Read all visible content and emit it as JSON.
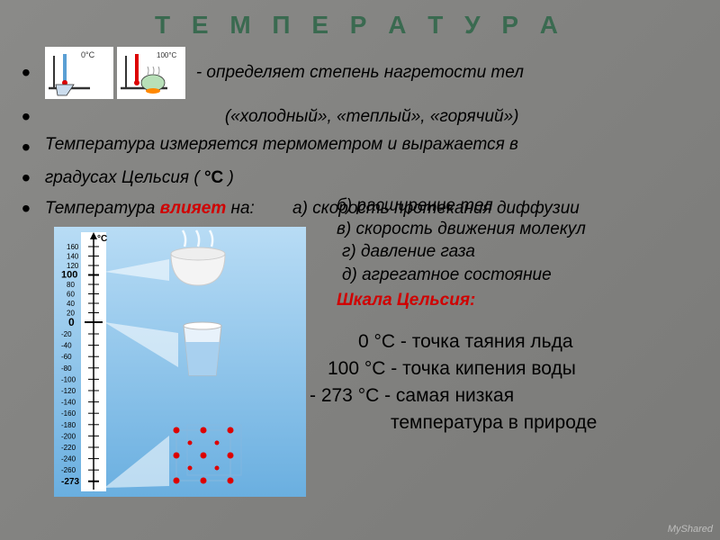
{
  "title": "Т Е М П Е Р А Т У Р А",
  "title_color": "#3a6a50",
  "thermo_labels": {
    "left": "0°C",
    "right": "100°C"
  },
  "line1": "- определяет степень нагретости тел",
  "line2": "(«холодный», «теплый», «горячий»)",
  "line3a": "Температура измеряется термометром и выражается в",
  "line3b": "градусах Цельсия ( ",
  "line3b_unit": "°C",
  "line3b_end": " )",
  "influence_prefix": "Температура",
  "influence_red": "влияет",
  "influence_suffix": "на:",
  "effects": {
    "a": "а) скорость протекания диффузии",
    "b": "б) расширение тел",
    "c": "в) скорость движения молекул",
    "d": "г) давление газа",
    "e": "д) агрегатное состояние"
  },
  "celsius_heading": "Шкала Цельсия:",
  "celsius_heading_color": "#d00000",
  "points": {
    "p0": {
      "val": "0 °C",
      "desc": "- точка таяния льда"
    },
    "p100": {
      "val": "100 °C",
      "desc": "-  точка кипения воды"
    },
    "p273": {
      "val": "- 273 °C",
      "desc": "-  самая низкая"
    },
    "p273b": "температура в природе"
  },
  "scale": {
    "bg_top": "#9ecaf0",
    "bg_bottom": "#5a9fd4",
    "ticks_pos": [
      "160",
      "140",
      "120",
      "100",
      "80",
      "60",
      "40",
      "20"
    ],
    "zero": "0",
    "ticks_neg": [
      "-20",
      "-40",
      "-60",
      "-80",
      "-100",
      "-120",
      "-140",
      "-160",
      "-180",
      "-200",
      "-220",
      "-240",
      "-260",
      "-273"
    ]
  },
  "watermark": "MyShared"
}
